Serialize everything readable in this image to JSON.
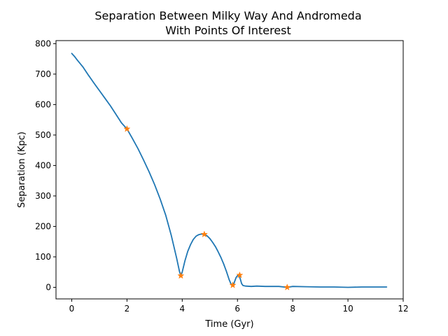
{
  "chart_data": {
    "type": "line",
    "title": "Separation Between Milky Way And Andromeda\nWith Points Of Interest",
    "title_lines": [
      "Separation Between Milky Way And Andromeda",
      "With Points Of Interest"
    ],
    "xlabel": "Time (Gyr)",
    "ylabel": "Separation (Kpc)",
    "xlim": [
      -0.57,
      12
    ],
    "ylim": [
      -38,
      810
    ],
    "xticks": [
      0,
      2,
      4,
      6,
      8,
      10,
      12
    ],
    "yticks": [
      0,
      100,
      200,
      300,
      400,
      500,
      600,
      700,
      800
    ],
    "grid": false,
    "colors": {
      "line": "#1f77b4",
      "markers": "#ff7f0e"
    },
    "series": [
      {
        "x": [
          0.0,
          0.1,
          0.2,
          0.4,
          0.6,
          0.8,
          1.0,
          1.2,
          1.4,
          1.6,
          1.8,
          2.0,
          2.2,
          2.4,
          2.6,
          2.8,
          3.0,
          3.2,
          3.4,
          3.6,
          3.8,
          3.9,
          3.95,
          4.0,
          4.1,
          4.2,
          4.3,
          4.4,
          4.5,
          4.6,
          4.7,
          4.8,
          4.9,
          5.0,
          5.1,
          5.2,
          5.3,
          5.4,
          5.5,
          5.6,
          5.7,
          5.78,
          5.85,
          5.9,
          5.95,
          6.0,
          6.05,
          6.1,
          6.15,
          6.2,
          6.3,
          6.5,
          6.7,
          7.0,
          7.5,
          7.8,
          8.0,
          8.5,
          9.0,
          9.5,
          10.0,
          10.5,
          11.0,
          11.4
        ],
        "y": [
          768,
          758,
          746,
          724,
          697,
          671,
          646,
          621,
          596,
          568,
          540,
          520,
          488,
          455,
          418,
          379,
          337,
          290,
          237,
          172,
          95,
          52,
          38,
          50,
          88,
          118,
          140,
          157,
          168,
          173,
          175,
          174,
          169,
          160,
          148,
          134,
          117,
          98,
          77,
          52,
          25,
          8,
          7,
          20,
          32,
          38,
          40,
          28,
          12,
          6,
          4,
          3,
          4,
          3,
          3,
          0,
          3,
          2,
          1,
          1,
          0,
          1,
          1,
          1
        ]
      }
    ],
    "points_of_interest": {
      "marker": "star",
      "x": [
        2.0,
        3.95,
        4.8,
        5.83,
        6.08,
        7.8
      ],
      "y": [
        520,
        38,
        174,
        7,
        40,
        0
      ]
    }
  }
}
